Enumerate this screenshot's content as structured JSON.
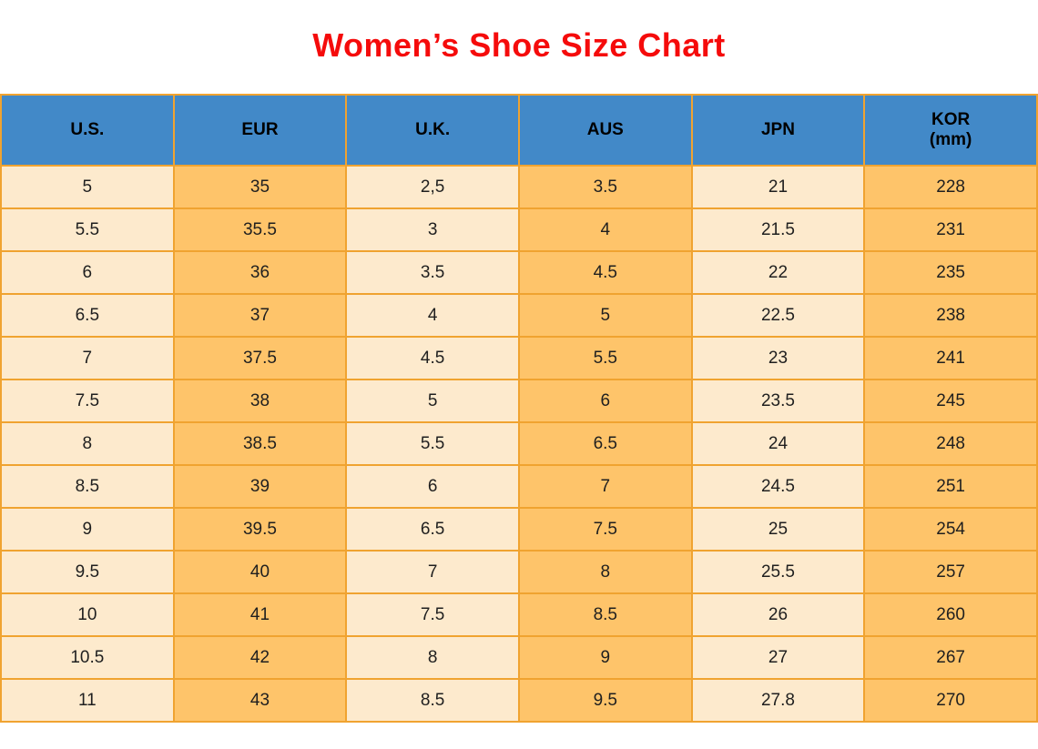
{
  "title": "Women’s Shoe Size Chart",
  "colors": {
    "title": "#f50b0b",
    "header_bg": "#4289c8",
    "col_cream": "#fdeacd",
    "col_orange": "#fec46a",
    "border": "#f0a330",
    "text": "#1f1f1f"
  },
  "table": {
    "columns": [
      {
        "label": "U.S."
      },
      {
        "label": "EUR"
      },
      {
        "label": "U.K."
      },
      {
        "label": "AUS"
      },
      {
        "label": "JPN"
      },
      {
        "label": "KOR",
        "sublabel": "(mm)"
      }
    ]
  },
  "chart_data": {
    "type": "table",
    "title": "Women’s Shoe Size Chart",
    "columns": [
      "U.S.",
      "EUR",
      "U.K.",
      "AUS",
      "JPN",
      "KOR (mm)"
    ],
    "rows": [
      [
        "5",
        "35",
        "2,5",
        "3.5",
        "21",
        "228"
      ],
      [
        "5.5",
        "35.5",
        "3",
        "4",
        "21.5",
        "231"
      ],
      [
        "6",
        "36",
        "3.5",
        "4.5",
        "22",
        "235"
      ],
      [
        "6.5",
        "37",
        "4",
        "5",
        "22.5",
        "238"
      ],
      [
        "7",
        "37.5",
        "4.5",
        "5.5",
        "23",
        "241"
      ],
      [
        "7.5",
        "38",
        "5",
        "6",
        "23.5",
        "245"
      ],
      [
        "8",
        "38.5",
        "5.5",
        "6.5",
        "24",
        "248"
      ],
      [
        "8.5",
        "39",
        "6",
        "7",
        "24.5",
        "251"
      ],
      [
        "9",
        "39.5",
        "6.5",
        "7.5",
        "25",
        "254"
      ],
      [
        "9.5",
        "40",
        "7",
        "8",
        "25.5",
        "257"
      ],
      [
        "10",
        "41",
        "7.5",
        "8.5",
        "26",
        "260"
      ],
      [
        "10.5",
        "42",
        "8",
        "9",
        "27",
        "267"
      ],
      [
        "11",
        "43",
        "8.5",
        "9.5",
        "27.8",
        "270"
      ]
    ],
    "layout_hints": {
      "column_fill_pattern": [
        "cream",
        "orange",
        "cream",
        "orange",
        "cream",
        "orange"
      ],
      "header_fill": "blue",
      "grid": "on"
    }
  }
}
